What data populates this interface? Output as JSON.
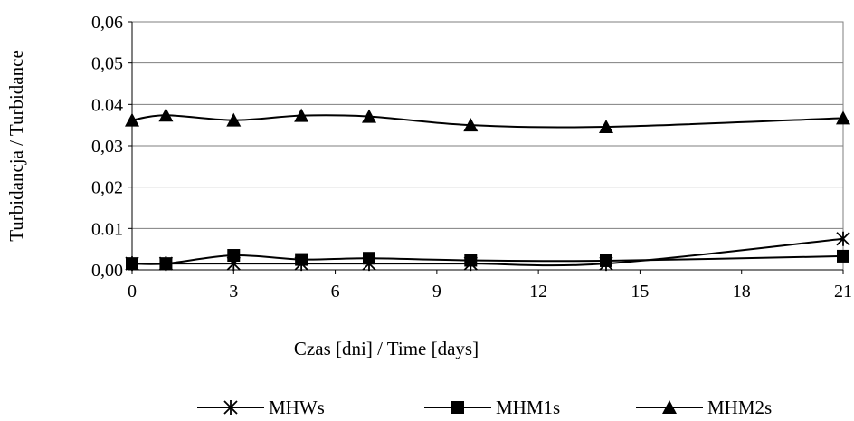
{
  "chart_data": {
    "type": "line",
    "title": "",
    "xlabel": "Czas [dni] / Time [days]",
    "ylabel": "Turbidancja / Turbidance",
    "xlim": [
      0,
      21
    ],
    "ylim": [
      0,
      0.06
    ],
    "x_ticks": [
      0,
      3,
      6,
      9,
      12,
      15,
      18,
      21
    ],
    "x_tick_labels": [
      "0",
      "3",
      "6",
      "9",
      "12",
      "15",
      "18",
      "21"
    ],
    "y_ticks": [
      0,
      0.01,
      0.02,
      0.03,
      0.04,
      0.05,
      0.06
    ],
    "y_tick_labels": [
      "0,00",
      "0.01",
      "0,02",
      "0,03",
      "0.04",
      "0,05",
      "0,06"
    ],
    "grid": "horizontal",
    "legend_position": "bottom",
    "x": [
      0,
      1,
      3,
      5,
      7,
      10,
      14,
      21
    ],
    "series": [
      {
        "name": "MHWs",
        "marker": "star",
        "values": [
          0.0015,
          0.0015,
          0.0015,
          0.0015,
          0.0015,
          0.0015,
          0.0015,
          0.0075
        ]
      },
      {
        "name": "MHM1s",
        "marker": "square",
        "values": [
          0.0015,
          0.0015,
          0.0035,
          0.0025,
          0.0028,
          0.0023,
          0.0022,
          0.0033
        ]
      },
      {
        "name": "MHM2s",
        "marker": "triangle",
        "values": [
          0.0362,
          0.0374,
          0.0362,
          0.0373,
          0.0371,
          0.035,
          0.0346,
          0.0367
        ]
      }
    ]
  }
}
